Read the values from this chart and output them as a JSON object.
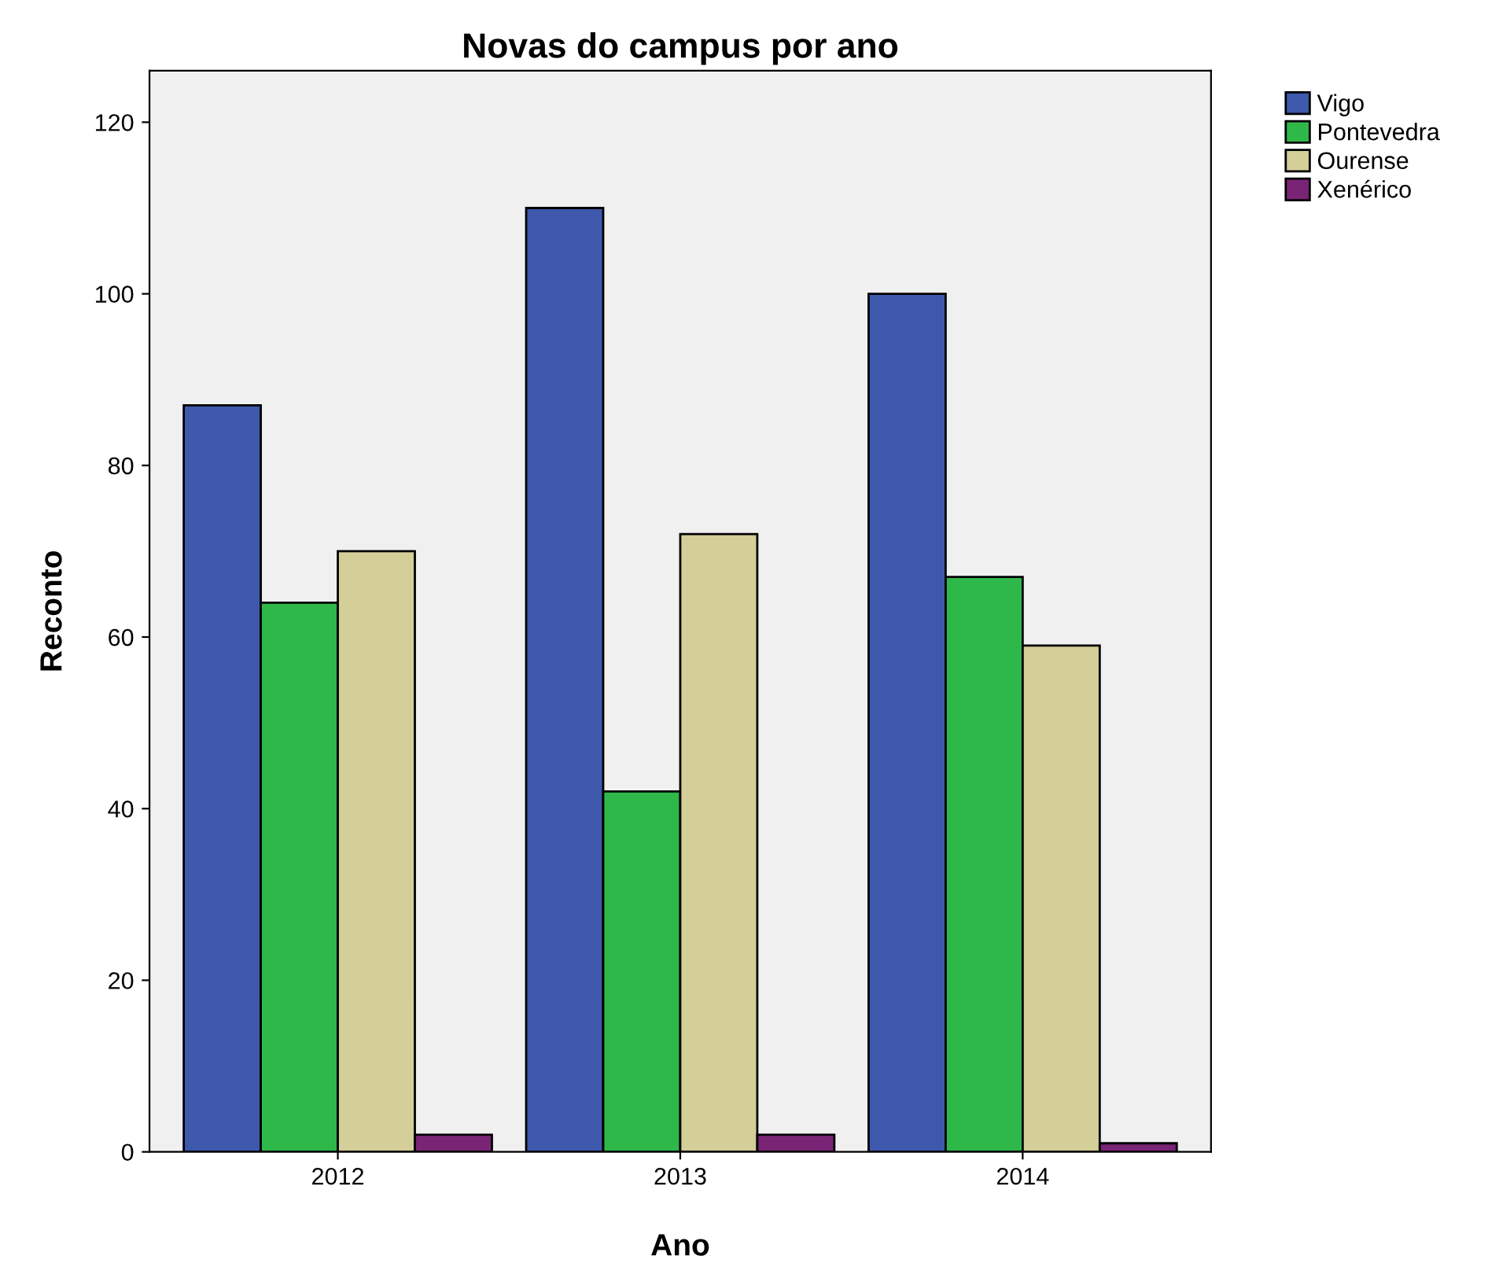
{
  "chart_data": {
    "type": "bar",
    "title": "Novas do campus por ano",
    "xlabel": "Ano",
    "ylabel": "Reconto",
    "categories": [
      "2012",
      "2013",
      "2014"
    ],
    "series": [
      {
        "name": "Vigo",
        "color": "#3e58ac",
        "values": [
          87,
          110,
          100
        ]
      },
      {
        "name": "Pontevedra",
        "color": "#2fb84a",
        "values": [
          64,
          42,
          67
        ]
      },
      {
        "name": "Ourense",
        "color": "#d4ce99",
        "values": [
          70,
          72,
          59
        ]
      },
      {
        "name": "Xenérico",
        "color": "#7a2476",
        "values": [
          2,
          2,
          1
        ]
      }
    ],
    "ylim": [
      0,
      126
    ],
    "yticks": [
      0,
      20,
      40,
      60,
      80,
      100,
      120
    ],
    "grid": false,
    "legend": "top right"
  }
}
